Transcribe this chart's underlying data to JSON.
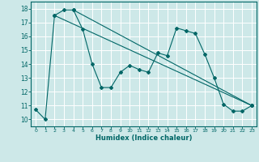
{
  "xlabel": "Humidex (Indice chaleur)",
  "background_color": "#cde8e8",
  "grid_color": "#ffffff",
  "line_color": "#006666",
  "xlim": [
    -0.5,
    23.5
  ],
  "ylim": [
    9.5,
    18.5
  ],
  "xticks": [
    0,
    1,
    2,
    3,
    4,
    5,
    6,
    7,
    8,
    9,
    10,
    11,
    12,
    13,
    14,
    15,
    16,
    17,
    18,
    19,
    20,
    21,
    22,
    23
  ],
  "yticks": [
    10,
    11,
    12,
    13,
    14,
    15,
    16,
    17,
    18
  ],
  "series": [
    {
      "x": [
        0,
        1,
        2,
        3,
        4,
        5,
        6,
        7,
        8,
        9,
        10,
        11,
        12,
        13,
        14,
        15,
        16,
        17,
        18,
        19,
        20,
        21,
        22,
        23
      ],
      "y": [
        10.7,
        10.0,
        17.5,
        17.9,
        17.9,
        16.5,
        14.0,
        12.3,
        12.3,
        13.4,
        13.9,
        13.6,
        13.4,
        14.8,
        14.6,
        16.6,
        16.4,
        16.2,
        14.7,
        13.0,
        11.1,
        10.6,
        10.6,
        11.0
      ]
    },
    {
      "x": [
        2,
        23
      ],
      "y": [
        17.5,
        11.0
      ]
    },
    {
      "x": [
        4,
        23
      ],
      "y": [
        17.9,
        11.0
      ]
    }
  ]
}
